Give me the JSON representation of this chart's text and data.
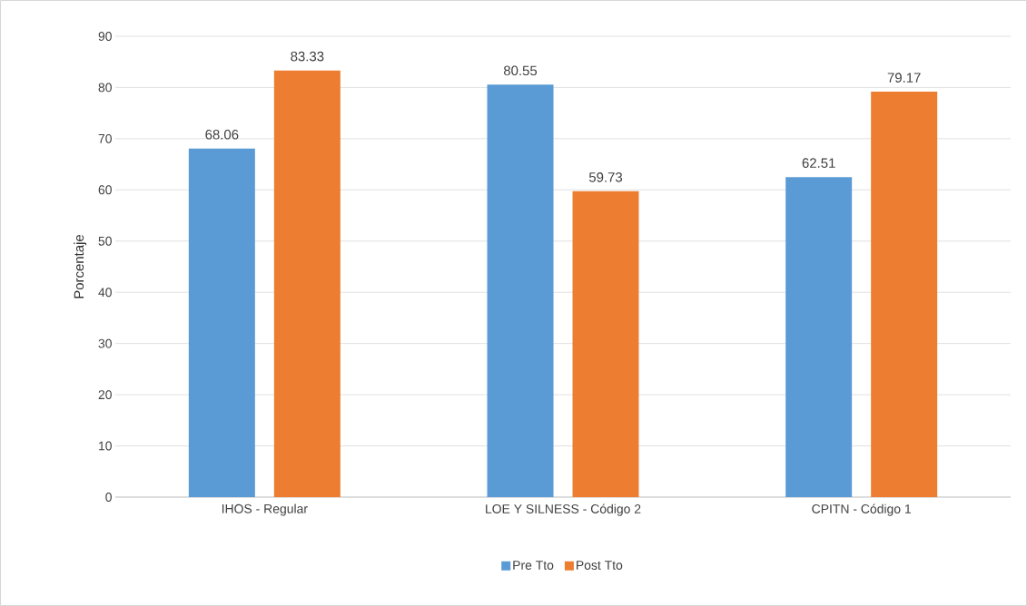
{
  "chart_data": {
    "type": "bar",
    "ylabel": "Porcentaje",
    "categories": [
      "IHOS - Regular",
      "LOE Y SILNESS - Código 2",
      "CPITN - Código 1"
    ],
    "series": [
      {
        "name": "Pre Tto",
        "color": "#5b9bd5",
        "values": [
          68.06,
          80.55,
          62.51
        ],
        "value_labels": [
          "68.06",
          "80.55",
          "62.51"
        ]
      },
      {
        "name": "Post Tto",
        "color": "#ed7d31",
        "values": [
          83.33,
          59.73,
          79.17
        ],
        "value_labels": [
          "83.33",
          "59.73",
          "79.17"
        ]
      }
    ],
    "ylim": [
      0,
      90
    ],
    "yticks": [
      0,
      10,
      20,
      30,
      40,
      50,
      60,
      70,
      80,
      90
    ],
    "grid": "y",
    "legend": "bottom"
  }
}
